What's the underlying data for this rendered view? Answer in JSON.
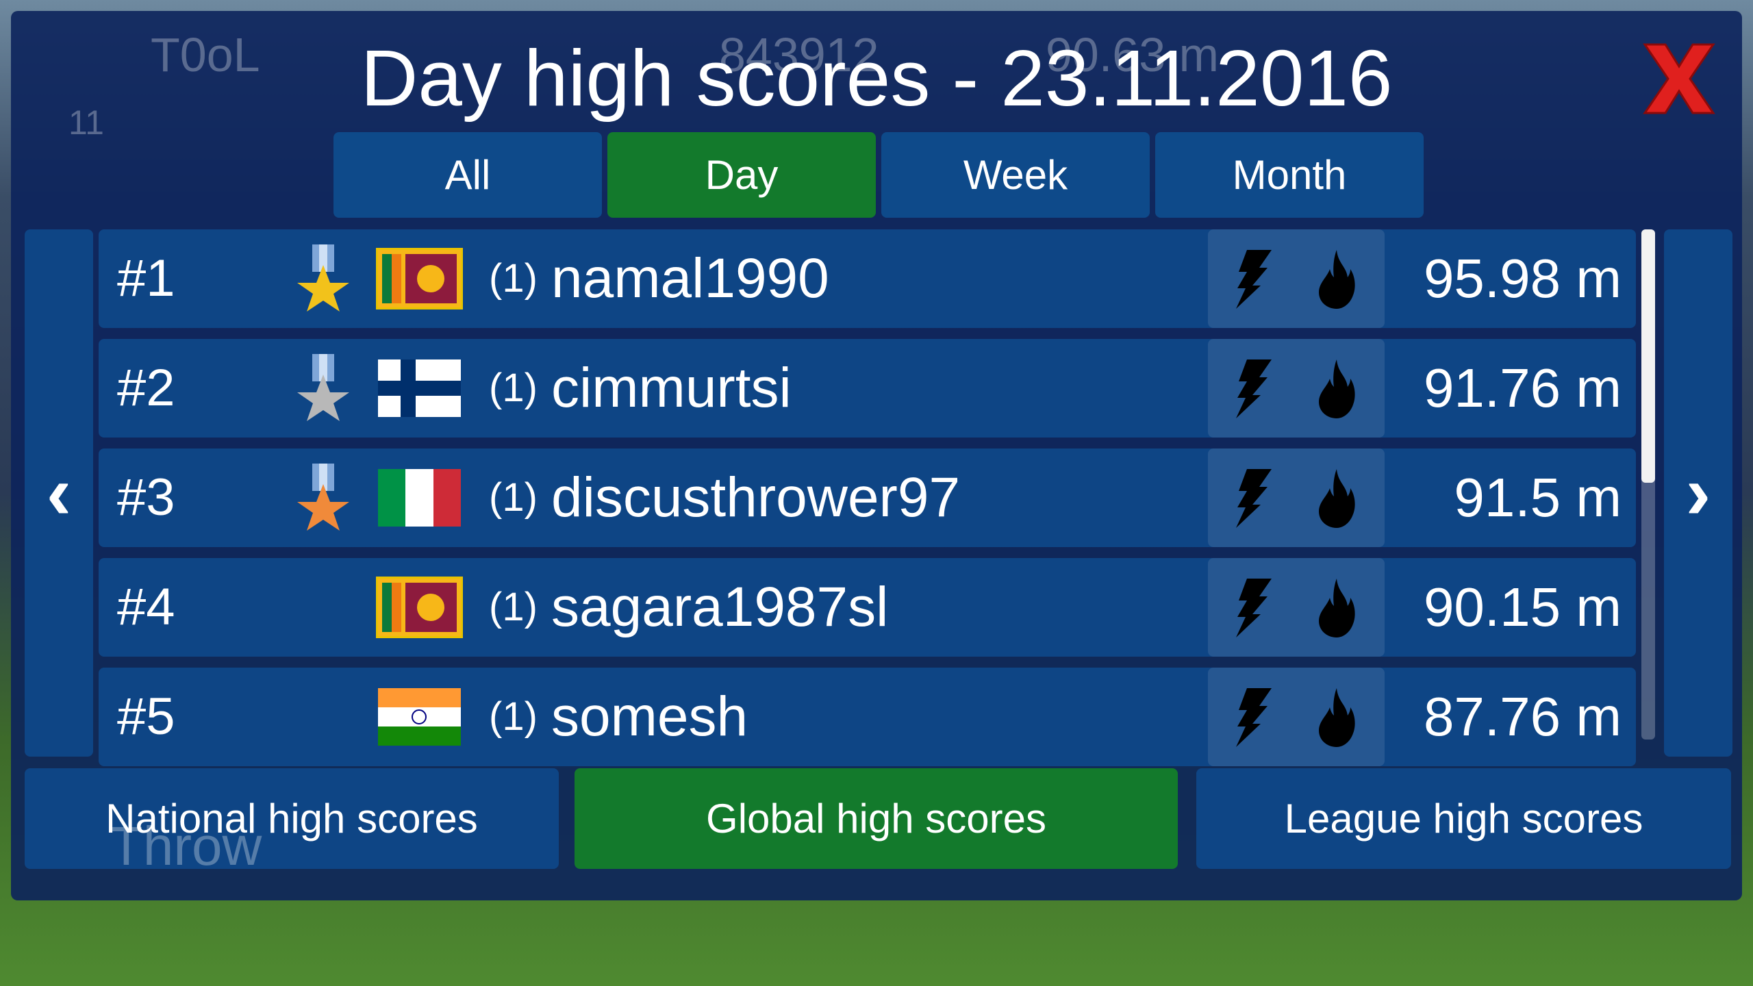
{
  "background": {
    "player_name": "T0oL",
    "level": "11",
    "points": "843912",
    "best": "90.63 m",
    "throw_label": "Throw"
  },
  "title": "Day high scores - 23.11.2016",
  "tabs": [
    {
      "label": "All",
      "active": false
    },
    {
      "label": "Day",
      "active": true
    },
    {
      "label": "Week",
      "active": false
    },
    {
      "label": "Month",
      "active": false
    }
  ],
  "rows": [
    {
      "rank": "#1",
      "medal": "gold",
      "country": "Sri Lanka",
      "count": "(1)",
      "name": "namal1990",
      "score": "95.98 m"
    },
    {
      "rank": "#2",
      "medal": "silver",
      "country": "Finland",
      "count": "(1)",
      "name": "cimmurtsi",
      "score": "91.76 m"
    },
    {
      "rank": "#3",
      "medal": "bronze",
      "country": "Italy",
      "count": "(1)",
      "name": "discusthrower97",
      "score": "91.5 m"
    },
    {
      "rank": "#4",
      "medal": null,
      "country": "Sri Lanka",
      "count": "(1)",
      "name": "sagara1987sl",
      "score": "90.15 m"
    },
    {
      "rank": "#5",
      "medal": null,
      "country": "India",
      "count": "(1)",
      "name": "somesh",
      "score": "87.76 m"
    }
  ],
  "row_icons": [
    "lightning-icon",
    "fire-icon"
  ],
  "bottom_buttons": [
    {
      "label": "National high scores",
      "active": false
    },
    {
      "label": "Global high scores",
      "active": true
    },
    {
      "label": "League high scores",
      "active": false
    }
  ],
  "colors": {
    "panel": "#0c245c",
    "row": "#0e4585",
    "active": "#137a2c",
    "close": "#e0201e",
    "gold": "#f2c21b",
    "silver": "#b8b8b8",
    "bronze": "#f08a3a"
  },
  "scroll_fraction": 0.5
}
